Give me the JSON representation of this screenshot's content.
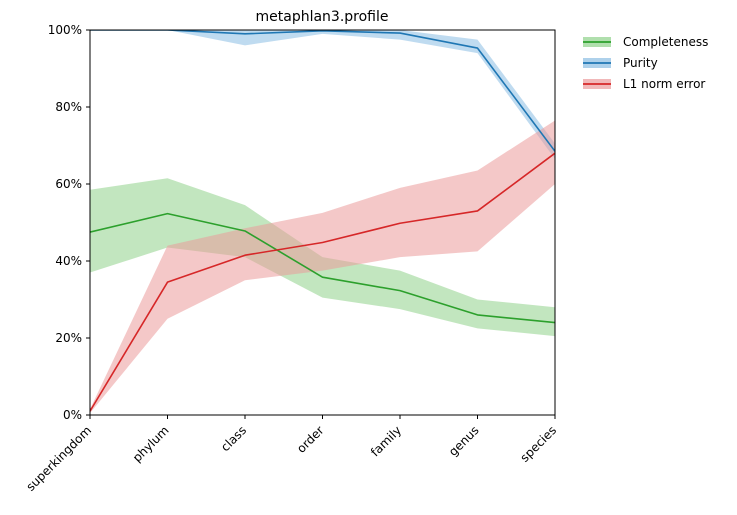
{
  "chart_data": {
    "type": "line",
    "title": "metaphlan3.profile",
    "xlabel": "",
    "ylabel": "",
    "categories": [
      "superkingdom",
      "phylum",
      "class",
      "order",
      "family",
      "genus",
      "species"
    ],
    "ylim": [
      0,
      100
    ],
    "y_ticks": [
      "0%",
      "20%",
      "40%",
      "60%",
      "80%",
      "100%"
    ],
    "y_tick_values": [
      0,
      20,
      40,
      60,
      80,
      100
    ],
    "grid": false,
    "legend_position": "outside-top-right",
    "series": [
      {
        "name": "Completeness",
        "color": "#2ca02c",
        "band_color": "#8fd18a",
        "values": [
          47.5,
          52.3,
          47.8,
          35.8,
          32.3,
          26.0,
          24.0
        ],
        "lower": [
          37.0,
          43.5,
          41.0,
          30.5,
          27.5,
          22.5,
          20.5
        ],
        "upper": [
          58.5,
          61.5,
          54.5,
          41.0,
          37.5,
          30.0,
          28.0
        ]
      },
      {
        "name": "Purity",
        "color": "#1f77b4",
        "band_color": "#8bbde3",
        "values": [
          100,
          100,
          99.0,
          99.8,
          99.2,
          95.3,
          68.5
        ],
        "lower": [
          100,
          100,
          96.0,
          99.0,
          97.5,
          94.0,
          66.5
        ],
        "upper": [
          100,
          100,
          100,
          100,
          100,
          97.5,
          70.5
        ]
      },
      {
        "name": "L1 norm error",
        "color": "#d62728",
        "band_color": "#eb9a9b",
        "values": [
          1.0,
          34.5,
          41.5,
          44.8,
          49.8,
          53.0,
          68.0
        ],
        "lower": [
          0.5,
          25.0,
          35.0,
          37.5,
          41.0,
          42.5,
          60.0
        ],
        "upper": [
          1.5,
          44.0,
          48.5,
          52.5,
          59.0,
          63.5,
          76.5
        ]
      }
    ]
  }
}
